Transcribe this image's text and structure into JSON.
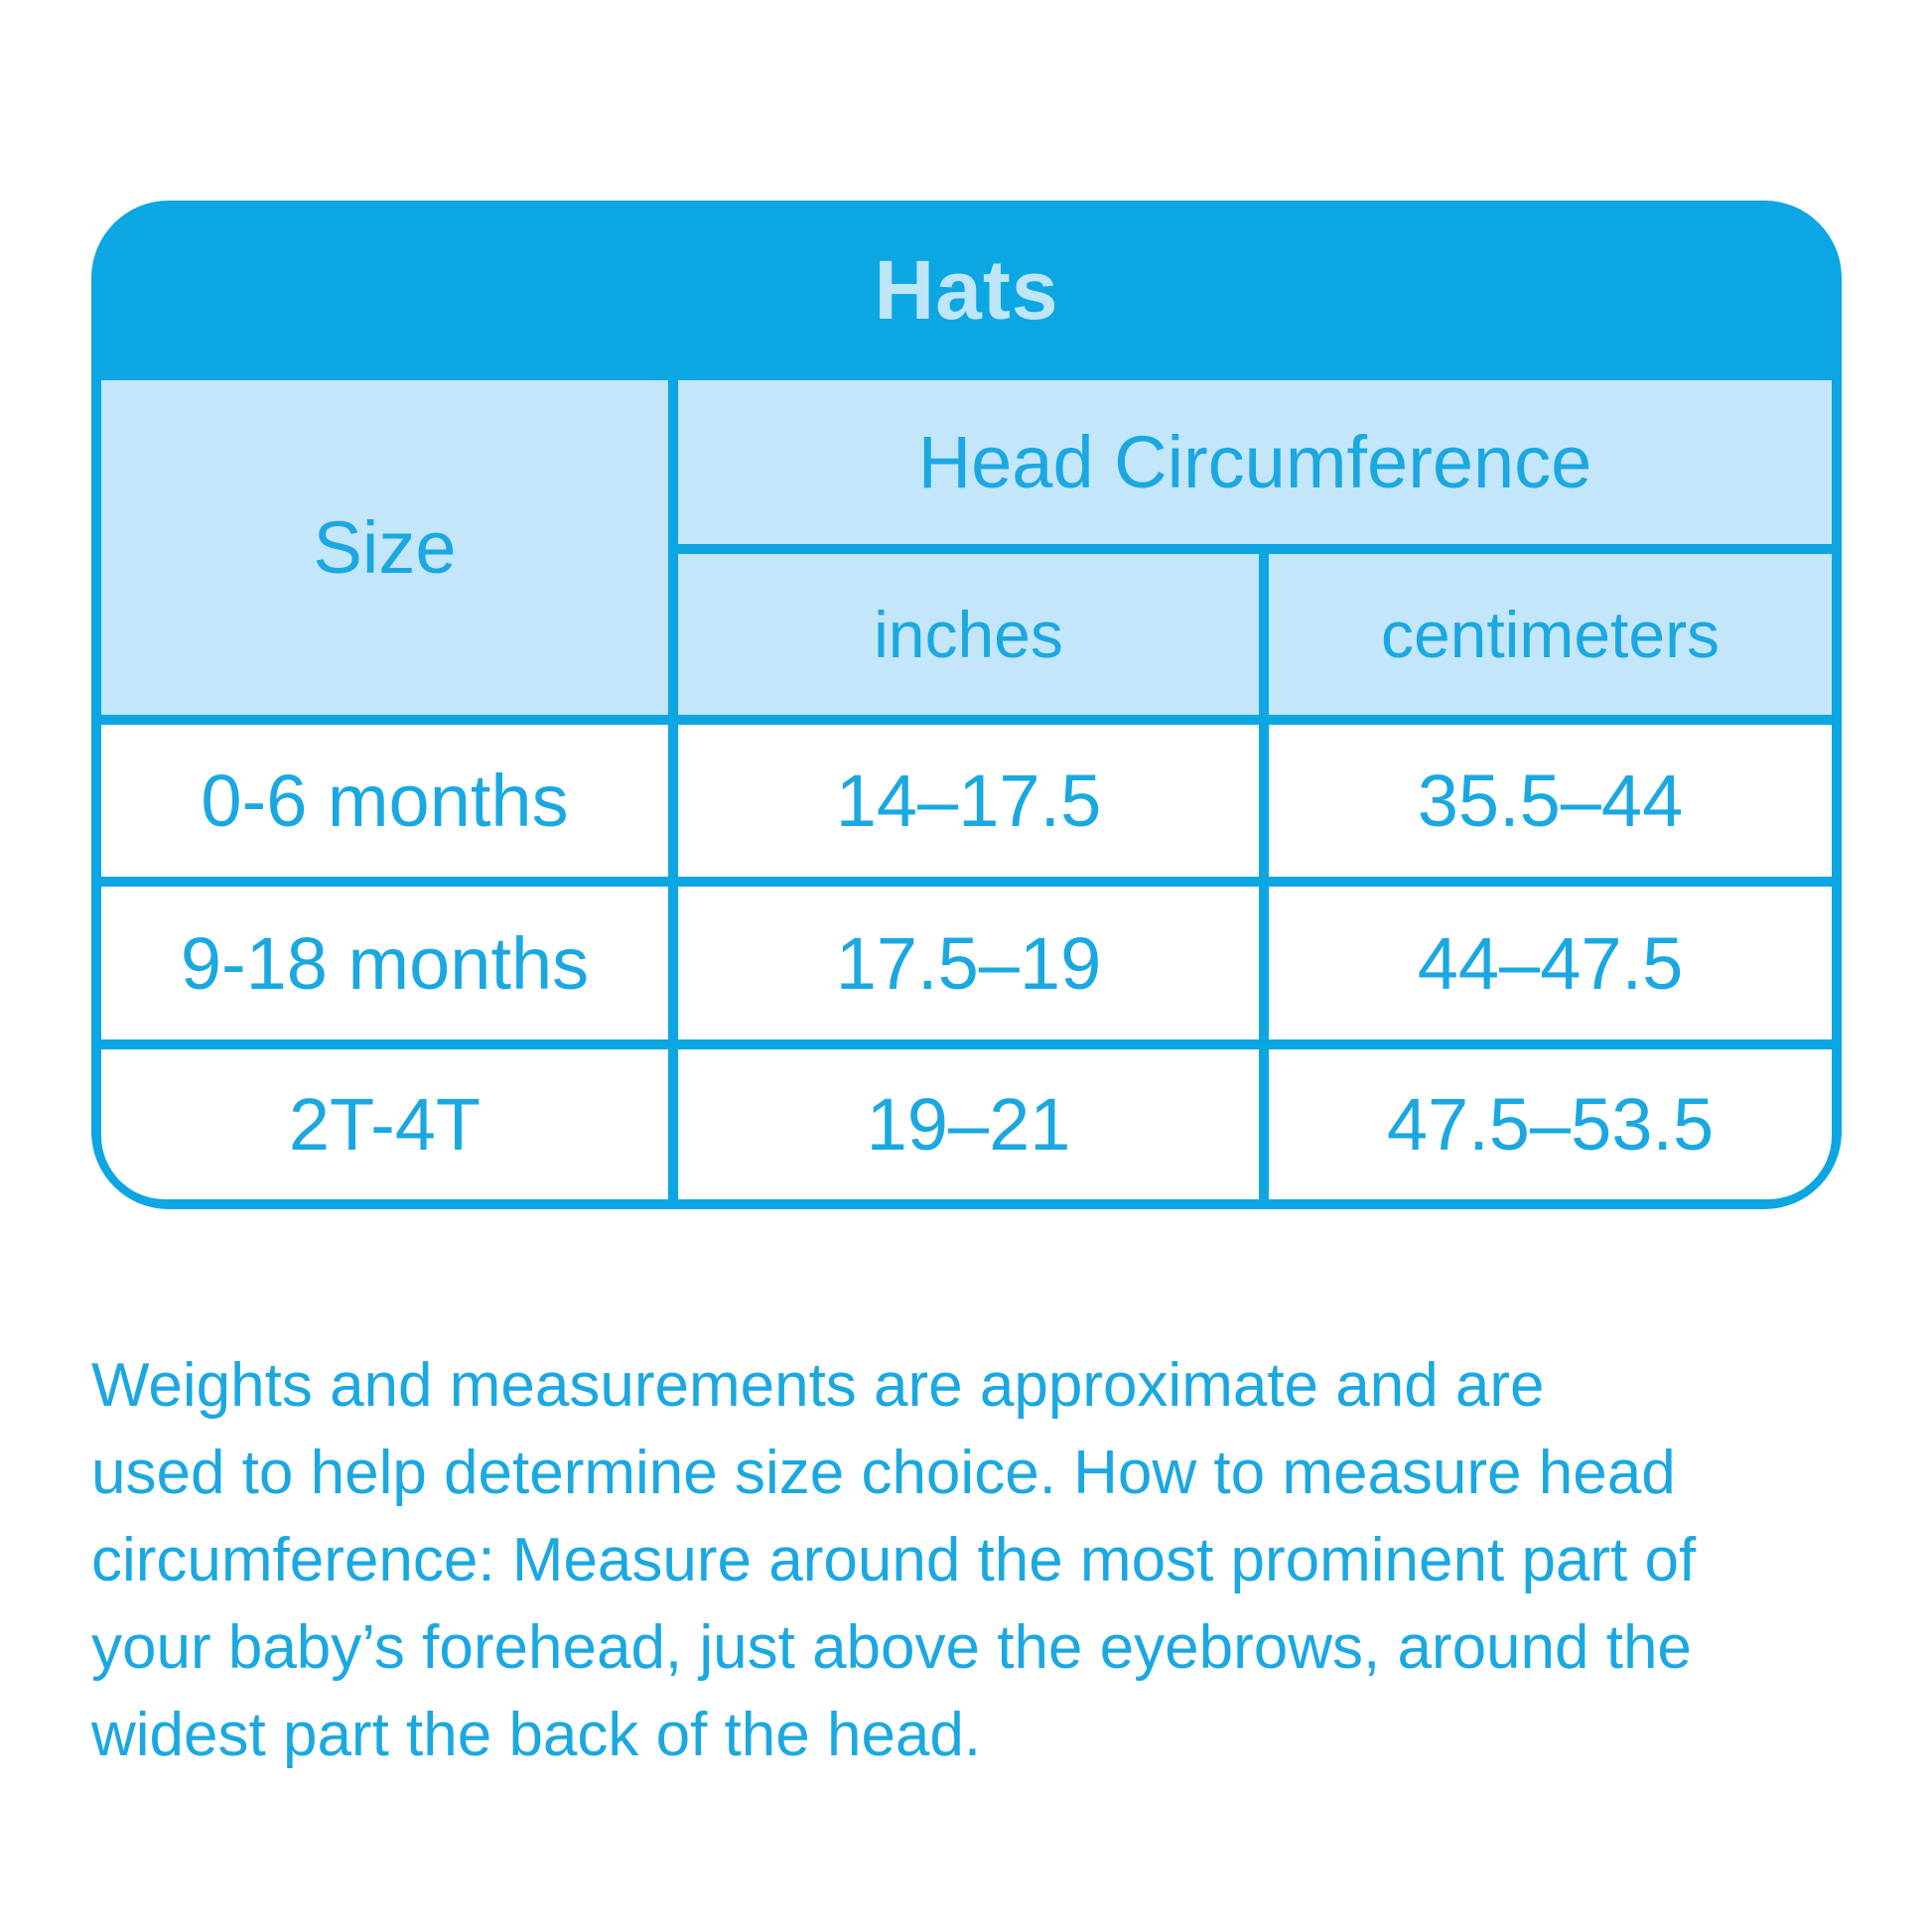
{
  "table": {
    "title": "Hats",
    "header": {
      "size_label": "Size",
      "head_circumference_label": "Head Circumference",
      "inches_label": "inches",
      "centimeters_label": "centimeters"
    },
    "rows": [
      {
        "size": "0-6 months",
        "inches": "14–17.5",
        "centimeters": "35.5–44"
      },
      {
        "size": "9-18 months",
        "inches": "17.5–19",
        "centimeters": "44–47.5"
      },
      {
        "size": "2T-4T",
        "inches": "19–21",
        "centimeters": "47.5–53.5"
      }
    ]
  },
  "note_lines": [
    "Weights and measurements are approximate and are",
    "used to help determine size choice. How to measure head",
    "circumference: Measure around the most prominent part of",
    "your baby’s forehead, just above the eyebrows, around the",
    "widest part the back of the head."
  ],
  "colors": {
    "primary_cyan": "#0ca6e2",
    "light_cell_blue": "#c3e6fa",
    "title_text_light": "#bfe5f8",
    "text_cyan": "#1ba8e1",
    "row_background": "#ffffff"
  }
}
